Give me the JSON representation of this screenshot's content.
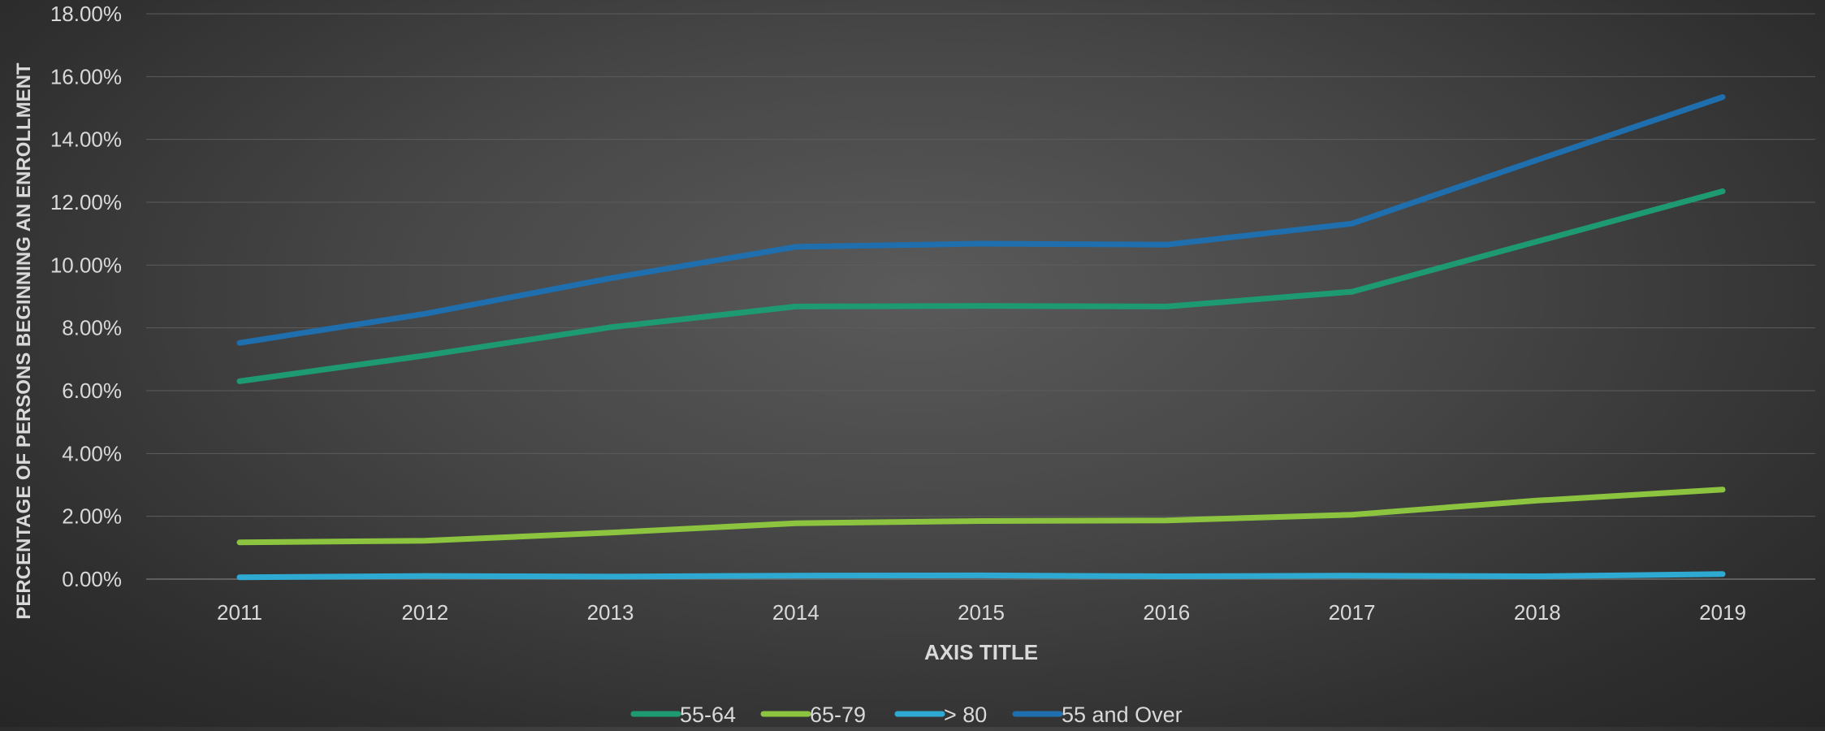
{
  "chart_data": {
    "type": "line",
    "title": "",
    "xlabel": "AXIS TITLE",
    "ylabel": "PERCENTAGE OF PERSONS BEGINNING AN ENROLLMENT",
    "categories": [
      "2011",
      "2012",
      "2013",
      "2014",
      "2015",
      "2016",
      "2017",
      "2018",
      "2019"
    ],
    "ylim": [
      0,
      0.18
    ],
    "y_ticks": [
      0,
      0.02,
      0.04,
      0.06,
      0.08,
      0.1,
      0.12,
      0.14,
      0.16,
      0.18
    ],
    "y_tick_labels": [
      "0.00%",
      "2.00%",
      "4.00%",
      "6.00%",
      "8.00%",
      "10.00%",
      "12.00%",
      "14.00%",
      "16.00%",
      "18.00%"
    ],
    "grid": true,
    "legend_position": "bottom",
    "series": [
      {
        "name": "55-64",
        "color": "#1e9a72",
        "values": [
          0.063,
          0.0712,
          0.0802,
          0.0868,
          0.087,
          0.0868,
          0.0915,
          0.1075,
          0.1235
        ]
      },
      {
        "name": "65-79",
        "color": "#8cc43f",
        "values": [
          0.0117,
          0.0122,
          0.0148,
          0.0178,
          0.0185,
          0.0187,
          0.0205,
          0.025,
          0.0285
        ]
      },
      {
        "name": "> 80",
        "color": "#2eaad2",
        "values": [
          0.0006,
          0.001,
          0.0008,
          0.0011,
          0.0012,
          0.0009,
          0.0011,
          0.0009,
          0.0016
        ]
      },
      {
        "name": "55 and Over",
        "color": "#1f6fae",
        "values": [
          0.0752,
          0.0845,
          0.0958,
          0.1058,
          0.1068,
          0.1065,
          0.1132,
          0.1335,
          0.1535
        ]
      }
    ]
  }
}
